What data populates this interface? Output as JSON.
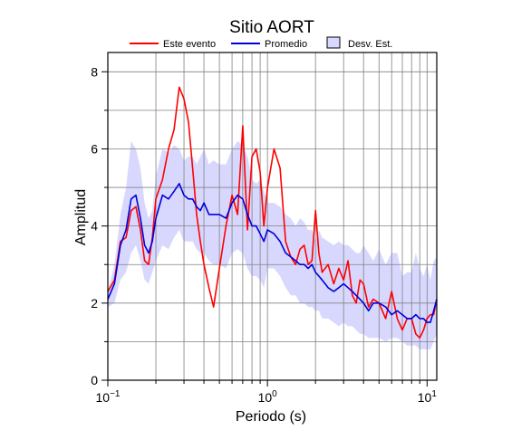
{
  "colors": {
    "event": "#ff0000",
    "mean": "#0000dd",
    "band_fill": "#d8d8ff",
    "band_edge": "#ffffff",
    "grid": "#808080",
    "frame": "#000000"
  },
  "chart_data": {
    "type": "line",
    "title": "Sitio AORT",
    "xlabel": "Periodo (s)",
    "ylabel": "Amplitud",
    "xscale": "log",
    "xlim": [
      0.1,
      11.5
    ],
    "ylim": [
      0,
      8.5
    ],
    "grid": true,
    "legend_position": "top",
    "x_ticks": [
      {
        "value": 0.1,
        "base": "10",
        "exp": "−1"
      },
      {
        "value": 1,
        "base": "10",
        "exp": "0"
      },
      {
        "value": 10,
        "base": "10",
        "exp": "1"
      }
    ],
    "y_ticks": [
      {
        "value": 0,
        "label": "0"
      },
      {
        "value": 2,
        "label": "2"
      },
      {
        "value": 4,
        "label": "4"
      },
      {
        "value": 6,
        "label": "6"
      },
      {
        "value": 8,
        "label": "8"
      }
    ],
    "legend": [
      {
        "key": "event",
        "label": "Este evento"
      },
      {
        "key": "mean",
        "label": "Promedio"
      },
      {
        "key": "band",
        "label": "Desv. Est."
      }
    ],
    "x": [
      0.1,
      0.11,
      0.12,
      0.13,
      0.14,
      0.15,
      0.16,
      0.17,
      0.18,
      0.19,
      0.2,
      0.22,
      0.24,
      0.26,
      0.28,
      0.3,
      0.32,
      0.34,
      0.36,
      0.38,
      0.4,
      0.43,
      0.46,
      0.5,
      0.55,
      0.6,
      0.65,
      0.7,
      0.75,
      0.8,
      0.85,
      0.9,
      0.95,
      1.0,
      1.1,
      1.2,
      1.3,
      1.4,
      1.5,
      1.6,
      1.7,
      1.8,
      1.9,
      2.0,
      2.1,
      2.2,
      2.4,
      2.6,
      2.8,
      3.0,
      3.2,
      3.4,
      3.6,
      3.8,
      4.0,
      4.3,
      4.6,
      5.0,
      5.5,
      6.0,
      6.5,
      7.0,
      7.5,
      8.0,
      8.5,
      9.0,
      9.5,
      10.0,
      10.5,
      11.0,
      11.5
    ],
    "series": [
      {
        "key": "event",
        "name": "Este evento",
        "values": [
          2.3,
          2.6,
          3.6,
          3.7,
          4.4,
          4.5,
          3.9,
          3.1,
          3.0,
          3.7,
          4.7,
          5.2,
          6.0,
          6.5,
          7.6,
          7.3,
          6.7,
          5.5,
          4.3,
          3.6,
          3.0,
          2.4,
          1.9,
          2.9,
          4.0,
          4.8,
          4.3,
          6.6,
          3.9,
          5.8,
          6.0,
          5.4,
          4.0,
          5.0,
          6.0,
          5.5,
          3.6,
          3.2,
          3.0,
          3.4,
          3.5,
          3.0,
          3.1,
          4.4,
          3.3,
          2.8,
          3.0,
          2.5,
          2.9,
          2.6,
          3.1,
          2.2,
          2.0,
          2.6,
          2.5,
          1.9,
          2.1,
          2.0,
          1.6,
          2.3,
          1.6,
          1.3,
          1.6,
          1.6,
          1.2,
          1.1,
          1.3,
          1.6,
          1.7,
          1.7,
          2.1
        ]
      },
      {
        "key": "mean",
        "name": "Promedio",
        "values": [
          2.1,
          2.5,
          3.5,
          3.9,
          4.7,
          4.8,
          4.2,
          3.5,
          3.3,
          3.6,
          4.2,
          4.8,
          4.7,
          4.9,
          5.1,
          4.8,
          4.7,
          4.7,
          4.5,
          4.4,
          4.6,
          4.3,
          4.3,
          4.3,
          4.2,
          4.6,
          4.8,
          4.7,
          4.3,
          4.0,
          4.0,
          3.8,
          3.6,
          3.9,
          3.8,
          3.6,
          3.3,
          3.2,
          3.1,
          3.0,
          3.0,
          2.9,
          3.0,
          2.8,
          2.7,
          2.6,
          2.4,
          2.3,
          2.4,
          2.5,
          2.4,
          2.3,
          2.2,
          2.1,
          2.0,
          1.8,
          2.0,
          2.0,
          1.9,
          1.7,
          1.8,
          1.7,
          1.6,
          1.6,
          1.7,
          1.6,
          1.6,
          1.5,
          1.5,
          1.8,
          2.1
        ]
      }
    ],
    "band": {
      "key": "band",
      "name": "Desv. Est.",
      "upper": [
        2.3,
        3.0,
        4.3,
        5.0,
        6.2,
        6.0,
        5.5,
        4.6,
        4.2,
        4.4,
        5.3,
        6.0,
        5.9,
        6.1,
        6.0,
        5.7,
        5.8,
        5.8,
        5.6,
        5.8,
        6.0,
        5.6,
        5.7,
        5.6,
        5.6,
        6.0,
        6.2,
        6.1,
        5.8,
        5.2,
        5.1,
        5.2,
        4.9,
        4.6,
        4.6,
        4.5,
        4.3,
        4.2,
        4.0,
        4.2,
        4.1,
        3.9,
        3.9,
        3.6,
        3.9,
        3.7,
        3.6,
        3.5,
        3.6,
        3.5,
        3.5,
        3.4,
        3.3,
        3.3,
        3.5,
        3.3,
        3.1,
        3.4,
        3.0,
        3.3,
        3.3,
        2.7,
        2.8,
        2.8,
        3.3,
        2.9,
        2.7,
        3.0,
        2.6,
        3.1,
        3.2
      ],
      "lower": [
        1.9,
        2.0,
        2.6,
        2.8,
        3.3,
        3.5,
        3.1,
        2.6,
        2.5,
        2.8,
        3.1,
        3.5,
        3.4,
        3.7,
        3.9,
        3.6,
        3.6,
        3.6,
        3.4,
        3.3,
        3.3,
        3.1,
        3.0,
        3.0,
        2.9,
        3.3,
        3.4,
        3.3,
        2.9,
        2.7,
        2.7,
        2.6,
        2.4,
        2.9,
        2.9,
        2.7,
        2.4,
        2.2,
        2.2,
        2.0,
        2.0,
        1.9,
        1.9,
        1.8,
        1.8,
        1.6,
        1.6,
        1.5,
        1.4,
        1.5,
        1.4,
        1.4,
        1.3,
        1.2,
        1.2,
        1.1,
        1.1,
        1.1,
        1.0,
        1.1,
        1.1,
        1.0,
        0.9,
        0.9,
        0.9,
        0.8,
        0.8,
        0.8,
        0.8,
        1.0,
        1.2
      ]
    }
  }
}
